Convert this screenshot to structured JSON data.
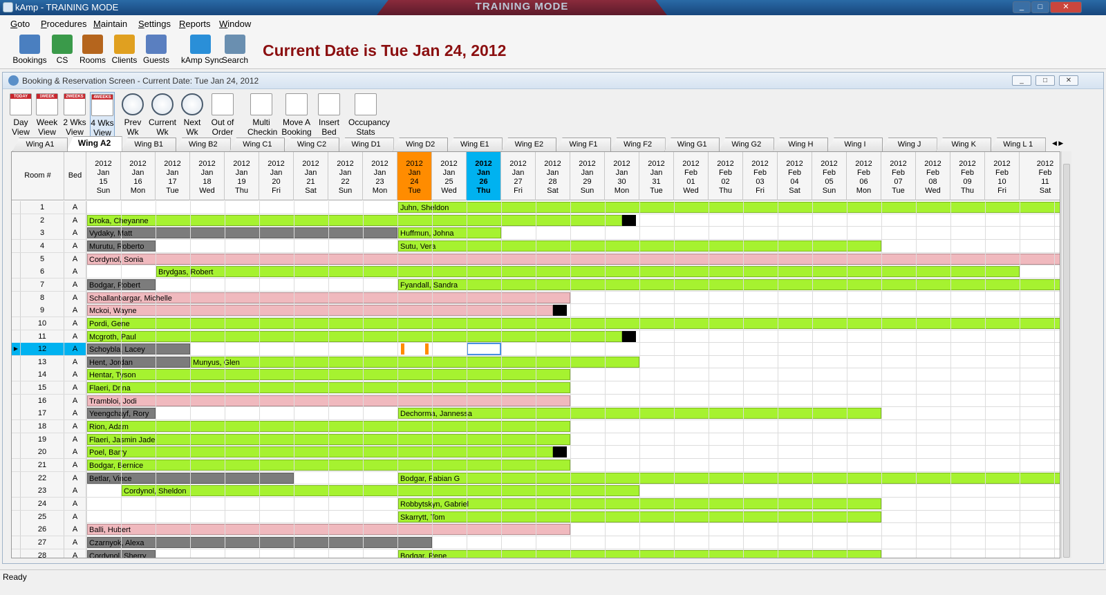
{
  "window": {
    "title": "kAmp - TRAINING MODE",
    "banner": "TRAINING MODE",
    "minimize": "_",
    "maximize": "□",
    "close": "✕"
  },
  "menu": [
    "Goto",
    "Procedures",
    "Maintain",
    "Settings",
    "Reports",
    "Window"
  ],
  "main_toolbar": [
    {
      "label": "Bookings",
      "icon": "calendar-icon",
      "color": "#4a7fc0"
    },
    {
      "label": "CS",
      "icon": "money-icon",
      "color": "#3a9a4a"
    },
    {
      "label": "Rooms",
      "icon": "door-icon",
      "color": "#b5651d"
    },
    {
      "label": "Clients",
      "icon": "clients-icon",
      "color": "#e0a020"
    },
    {
      "label": "Guests",
      "icon": "guests-icon",
      "color": "#5a7fc0"
    },
    {
      "label": "kAmp Sync",
      "icon": "sync-icon",
      "color": "#2a8fd8"
    },
    {
      "label": "Search",
      "icon": "search-icon",
      "color": "#6a8fb0"
    }
  ],
  "current_date_text": "Current Date is Tue Jan 24, 2012",
  "child_window": {
    "title": "Booking & Reservation Screen - Current Date: Tue Jan 24, 2012"
  },
  "child_toolbar": [
    {
      "label": "Day\nView",
      "icon": "day-view-icon",
      "badge": "TODAY"
    },
    {
      "label": "Week\nView",
      "icon": "week-view-icon",
      "badge": "1WEEK"
    },
    {
      "label": "2 Wks\nView",
      "icon": "two-weeks-view-icon",
      "badge": "2WEEKS"
    },
    {
      "label": "4 Wks\nView",
      "icon": "four-weeks-view-icon",
      "badge": "4WEEKS"
    },
    {
      "label": "Prev\nWk",
      "icon": "prev-week-clock-icon"
    },
    {
      "label": "Current\nWk",
      "icon": "current-week-clock-icon"
    },
    {
      "label": "Next\nWk",
      "icon": "next-week-clock-icon"
    },
    {
      "label": "Out of\nOrder",
      "icon": "out-of-order-icon"
    },
    {
      "label": "Multi\nCheckin",
      "icon": "multi-checkin-icon"
    },
    {
      "label": "Move A\nBooking",
      "icon": "move-booking-icon"
    },
    {
      "label": "Insert\nBed",
      "icon": "insert-bed-icon"
    },
    {
      "label": "Occupancy\nStats",
      "icon": "occupancy-stats-icon"
    }
  ],
  "tabs": [
    "Wing A1",
    "Wing A2",
    "Wing B1",
    "Wing B2",
    "Wing C1",
    "Wing C2",
    "Wing D1",
    "Wing D2",
    "Wing E1",
    "Wing E2",
    "Wing F1",
    "Wing F2",
    "Wing G1",
    "Wing G2",
    "Wing H",
    "Wing I",
    "Wing J",
    "Wing K",
    "Wing L 1"
  ],
  "selected_tab": 1,
  "grid": {
    "headers": {
      "room": "Room #",
      "bed": "Bed"
    },
    "today_index": 9,
    "selected_col_index": 11,
    "days": [
      {
        "year": "2012",
        "month": "Jan",
        "day": "15",
        "dow": "Sun"
      },
      {
        "year": "2012",
        "month": "Jan",
        "day": "16",
        "dow": "Mon"
      },
      {
        "year": "2012",
        "month": "Jan",
        "day": "17",
        "dow": "Tue"
      },
      {
        "year": "2012",
        "month": "Jan",
        "day": "18",
        "dow": "Wed"
      },
      {
        "year": "2012",
        "month": "Jan",
        "day": "19",
        "dow": "Thu"
      },
      {
        "year": "2012",
        "month": "Jan",
        "day": "20",
        "dow": "Fri"
      },
      {
        "year": "2012",
        "month": "Jan",
        "day": "21",
        "dow": "Sat"
      },
      {
        "year": "2012",
        "month": "Jan",
        "day": "22",
        "dow": "Sun"
      },
      {
        "year": "2012",
        "month": "Jan",
        "day": "23",
        "dow": "Mon"
      },
      {
        "year": "2012",
        "month": "Jan",
        "day": "24",
        "dow": "Tue"
      },
      {
        "year": "2012",
        "month": "Jan",
        "day": "25",
        "dow": "Wed"
      },
      {
        "year": "2012",
        "month": "Jan",
        "day": "26",
        "dow": "Thu"
      },
      {
        "year": "2012",
        "month": "Jan",
        "day": "27",
        "dow": "Fri"
      },
      {
        "year": "2012",
        "month": "Jan",
        "day": "28",
        "dow": "Sat"
      },
      {
        "year": "2012",
        "month": "Jan",
        "day": "29",
        "dow": "Sun"
      },
      {
        "year": "2012",
        "month": "Jan",
        "day": "30",
        "dow": "Mon"
      },
      {
        "year": "2012",
        "month": "Jan",
        "day": "31",
        "dow": "Tue"
      },
      {
        "year": "2012",
        "month": "Feb",
        "day": "01",
        "dow": "Wed"
      },
      {
        "year": "2012",
        "month": "Feb",
        "day": "02",
        "dow": "Thu"
      },
      {
        "year": "2012",
        "month": "Feb",
        "day": "03",
        "dow": "Fri"
      },
      {
        "year": "2012",
        "month": "Feb",
        "day": "04",
        "dow": "Sat"
      },
      {
        "year": "2012",
        "month": "Feb",
        "day": "05",
        "dow": "Sun"
      },
      {
        "year": "2012",
        "month": "Feb",
        "day": "06",
        "dow": "Mon"
      },
      {
        "year": "2012",
        "month": "Feb",
        "day": "07",
        "dow": "Tue"
      },
      {
        "year": "2012",
        "month": "Feb",
        "day": "08",
        "dow": "Wed"
      },
      {
        "year": "2012",
        "month": "Feb",
        "day": "09",
        "dow": "Thu"
      },
      {
        "year": "2012",
        "month": "Feb",
        "day": "10",
        "dow": "Fri"
      },
      {
        "year": "2012",
        "month": "Feb",
        "day": "11",
        "dow": "Sat"
      }
    ],
    "selected_row": 12,
    "rows": [
      {
        "room": "1",
        "bed": "A",
        "bookings": [
          {
            "name": "Juhn, Sheldon",
            "start": 9,
            "end": 28,
            "status": "g"
          }
        ]
      },
      {
        "room": "2",
        "bed": "A",
        "bookings": [
          {
            "name": "Droka, Cheyanne",
            "start": 0,
            "end": 15.5,
            "status": "g"
          }
        ],
        "blocks": [
          15.5
        ]
      },
      {
        "room": "3",
        "bed": "A",
        "bookings": [
          {
            "name": "Vydaky, Matt",
            "start": 0,
            "end": 9,
            "status": "d"
          },
          {
            "name": "Huffmun, Johna",
            "start": 9,
            "end": 12,
            "status": "g"
          }
        ]
      },
      {
        "room": "4",
        "bed": "A",
        "bookings": [
          {
            "name": "Murutu, Roberto",
            "start": 0,
            "end": 2,
            "status": "d"
          },
          {
            "name": "Sutu, Vera",
            "start": 9,
            "end": 23,
            "status": "g"
          }
        ]
      },
      {
        "room": "5",
        "bed": "A",
        "bookings": [
          {
            "name": "Cordynol, Sonia",
            "start": 0,
            "end": 28,
            "status": "p"
          }
        ]
      },
      {
        "room": "6",
        "bed": "A",
        "bookings": [
          {
            "name": "Brydgas, Robert",
            "start": 2,
            "end": 27,
            "status": "g"
          }
        ]
      },
      {
        "room": "7",
        "bed": "A",
        "bookings": [
          {
            "name": "Bodgar, Robert",
            "start": 0,
            "end": 2,
            "status": "d"
          },
          {
            "name": "Fyandall, Sandra",
            "start": 9,
            "end": 28,
            "status": "g"
          }
        ]
      },
      {
        "room": "8",
        "bed": "A",
        "bookings": [
          {
            "name": "Schallanbargar, Michelle",
            "start": 0,
            "end": 14,
            "status": "p"
          }
        ]
      },
      {
        "room": "9",
        "bed": "A",
        "bookings": [
          {
            "name": "Mckoi, Wayne",
            "start": 0,
            "end": 13.5,
            "status": "p"
          }
        ],
        "blocks": [
          13.5
        ]
      },
      {
        "room": "10",
        "bed": "A",
        "bookings": [
          {
            "name": "Pordi, Gene",
            "start": 0,
            "end": 28,
            "status": "g"
          }
        ]
      },
      {
        "room": "11",
        "bed": "A",
        "bookings": [
          {
            "name": "Mcgroth, Paul",
            "start": 0,
            "end": 15.5,
            "status": "g"
          }
        ],
        "blocks": [
          15.5
        ]
      },
      {
        "room": "12",
        "bed": "A",
        "bookings": [
          {
            "name": "Schoybla, Lacey",
            "start": 0,
            "end": 3,
            "status": "d"
          }
        ],
        "marks": [
          9.1,
          9.8
        ],
        "selcell": 11
      },
      {
        "room": "13",
        "bed": "A",
        "bookings": [
          {
            "name": "Hent, Jordan",
            "start": 0,
            "end": 3,
            "status": "d"
          },
          {
            "name": "Munyus, Glen",
            "start": 3,
            "end": 16,
            "status": "g"
          }
        ]
      },
      {
        "room": "14",
        "bed": "A",
        "bookings": [
          {
            "name": "Hentar, Tyson",
            "start": 0,
            "end": 14,
            "status": "g"
          }
        ]
      },
      {
        "room": "15",
        "bed": "A",
        "bookings": [
          {
            "name": "Flaeri, Drina",
            "start": 0,
            "end": 14,
            "status": "g"
          }
        ]
      },
      {
        "room": "16",
        "bed": "A",
        "bookings": [
          {
            "name": "Trambloi, Jodi",
            "start": 0,
            "end": 14,
            "status": "p"
          }
        ]
      },
      {
        "room": "17",
        "bed": "A",
        "bookings": [
          {
            "name": "Yeengchayf, Rory",
            "start": 0,
            "end": 2,
            "status": "d"
          },
          {
            "name": "Dechorma, Jannessa",
            "start": 9,
            "end": 23,
            "status": "g"
          }
        ]
      },
      {
        "room": "18",
        "bed": "A",
        "bookings": [
          {
            "name": "Rion, Adam",
            "start": 0,
            "end": 14,
            "status": "g"
          }
        ]
      },
      {
        "room": "19",
        "bed": "A",
        "bookings": [
          {
            "name": "Flaeri, Jasmin Jade",
            "start": 0,
            "end": 14,
            "status": "g"
          }
        ]
      },
      {
        "room": "20",
        "bed": "A",
        "bookings": [
          {
            "name": "Poel, Barry",
            "start": 0,
            "end": 13.5,
            "status": "g"
          }
        ],
        "blocks": [
          13.5
        ]
      },
      {
        "room": "21",
        "bed": "A",
        "bookings": [
          {
            "name": "Bodgar, Bernice",
            "start": 0,
            "end": 14,
            "status": "g"
          }
        ]
      },
      {
        "room": "22",
        "bed": "A",
        "bookings": [
          {
            "name": "Betlar, Vince",
            "start": 0,
            "end": 6,
            "status": "d"
          },
          {
            "name": "Bodgar, Fabian G",
            "start": 9,
            "end": 28,
            "status": "g"
          }
        ]
      },
      {
        "room": "23",
        "bed": "A",
        "bookings": [
          {
            "name": "Cordynol, Sheldon",
            "start": 1,
            "end": 16,
            "status": "g"
          }
        ]
      },
      {
        "room": "24",
        "bed": "A",
        "bookings": [
          {
            "name": "Robbytskyn, Gabriel",
            "start": 9,
            "end": 23,
            "status": "g"
          }
        ]
      },
      {
        "room": "25",
        "bed": "A",
        "bookings": [
          {
            "name": "Skarrytt, Tom",
            "start": 9,
            "end": 23,
            "status": "g"
          }
        ]
      },
      {
        "room": "26",
        "bed": "A",
        "bookings": [
          {
            "name": "Balli, Hubert",
            "start": 0,
            "end": 14,
            "status": "p"
          }
        ]
      },
      {
        "room": "27",
        "bed": "A",
        "bookings": [
          {
            "name": "Czarnyok, Alexa",
            "start": 0,
            "end": 10,
            "status": "d"
          }
        ]
      },
      {
        "room": "28",
        "bed": "A",
        "bookings": [
          {
            "name": "Cordynol, Sherry",
            "start": 0,
            "end": 2,
            "status": "d"
          },
          {
            "name": "Bodgar, Rene",
            "start": 9,
            "end": 23,
            "status": "g"
          }
        ]
      }
    ]
  },
  "status": "Ready"
}
